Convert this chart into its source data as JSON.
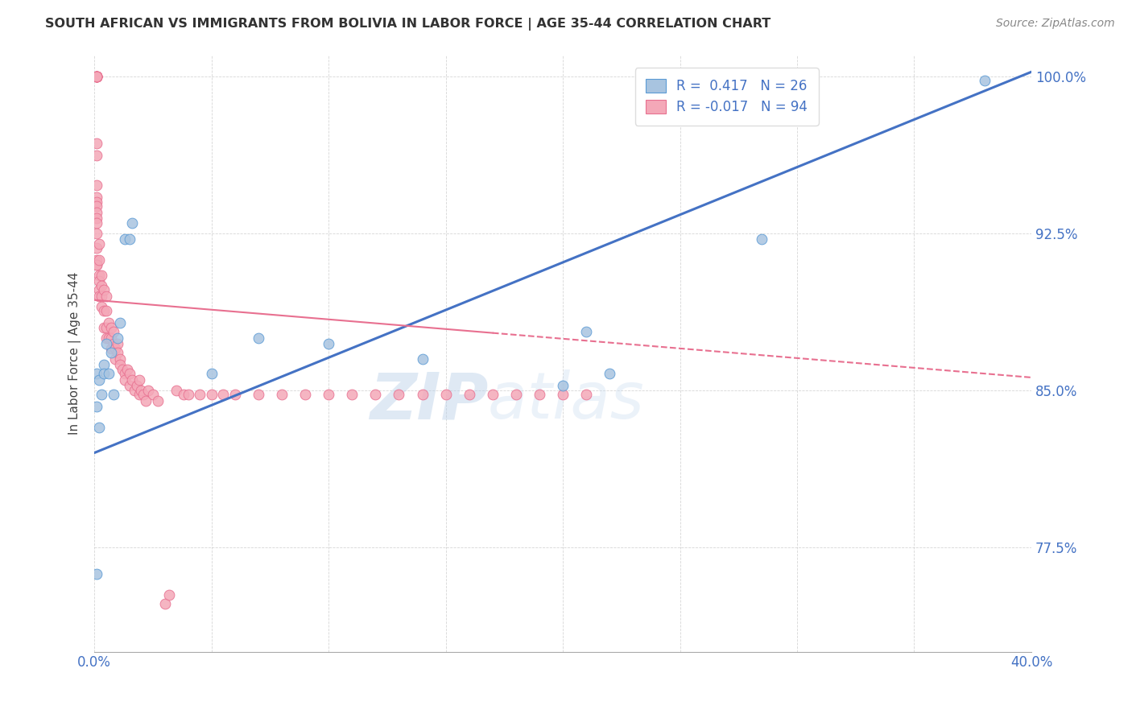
{
  "title": "SOUTH AFRICAN VS IMMIGRANTS FROM BOLIVIA IN LABOR FORCE | AGE 35-44 CORRELATION CHART",
  "source": "Source: ZipAtlas.com",
  "ylabel": "In Labor Force | Age 35-44",
  "xlim": [
    0.0,
    0.4
  ],
  "ylim": [
    0.725,
    1.01
  ],
  "xticks": [
    0.0,
    0.05,
    0.1,
    0.15,
    0.2,
    0.25,
    0.3,
    0.35,
    0.4
  ],
  "xticklabels": [
    "0.0%",
    "",
    "",
    "",
    "",
    "",
    "",
    "",
    "40.0%"
  ],
  "yticks": [
    0.775,
    0.85,
    0.925,
    1.0
  ],
  "yticklabels": [
    "77.5%",
    "85.0%",
    "92.5%",
    "100.0%"
  ],
  "blue_color": "#a8c4e0",
  "pink_color": "#f4a8b8",
  "blue_edge_color": "#5b9bd5",
  "pink_edge_color": "#e87090",
  "blue_line_color": "#4472c4",
  "pink_line_color": "#e87090",
  "watermark": "ZIPatlas",
  "blue_line_x0": 0.0,
  "blue_line_y0": 0.82,
  "blue_line_x1": 0.4,
  "blue_line_y1": 1.002,
  "pink_line_x0": 0.0,
  "pink_line_y0": 0.893,
  "pink_line_x1": 0.4,
  "pink_line_y1": 0.856,
  "sa_x": [
    0.001,
    0.001,
    0.001,
    0.002,
    0.002,
    0.003,
    0.004,
    0.004,
    0.005,
    0.006,
    0.007,
    0.008,
    0.01,
    0.011,
    0.013,
    0.015,
    0.016,
    0.05,
    0.07,
    0.1,
    0.14,
    0.2,
    0.21,
    0.22,
    0.285,
    0.38
  ],
  "sa_y": [
    0.762,
    0.842,
    0.858,
    0.832,
    0.855,
    0.848,
    0.862,
    0.858,
    0.872,
    0.858,
    0.868,
    0.848,
    0.875,
    0.882,
    0.922,
    0.922,
    0.93,
    0.858,
    0.875,
    0.872,
    0.865,
    0.852,
    0.878,
    0.858,
    0.922,
    0.998
  ],
  "bo_x": [
    0.001,
    0.001,
    0.001,
    0.001,
    0.001,
    0.001,
    0.001,
    0.001,
    0.001,
    0.001,
    0.001,
    0.001,
    0.001,
    0.001,
    0.001,
    0.001,
    0.001,
    0.001,
    0.001,
    0.001,
    0.001,
    0.001,
    0.001,
    0.002,
    0.002,
    0.002,
    0.002,
    0.002,
    0.002,
    0.003,
    0.003,
    0.003,
    0.003,
    0.004,
    0.004,
    0.004,
    0.005,
    0.005,
    0.005,
    0.005,
    0.006,
    0.006,
    0.007,
    0.007,
    0.007,
    0.008,
    0.008,
    0.009,
    0.009,
    0.01,
    0.01,
    0.011,
    0.011,
    0.012,
    0.013,
    0.013,
    0.014,
    0.015,
    0.015,
    0.016,
    0.017,
    0.018,
    0.019,
    0.019,
    0.02,
    0.021,
    0.022,
    0.023,
    0.025,
    0.027,
    0.03,
    0.032,
    0.035,
    0.038,
    0.04,
    0.045,
    0.05,
    0.055,
    0.06,
    0.07,
    0.08,
    0.09,
    0.1,
    0.11,
    0.12,
    0.13,
    0.14,
    0.15,
    0.16,
    0.17,
    0.18,
    0.19,
    0.2,
    0.21
  ],
  "bo_y": [
    1.0,
    1.0,
    1.0,
    1.0,
    1.0,
    1.0,
    1.0,
    1.0,
    1.0,
    0.968,
    0.962,
    0.948,
    0.942,
    0.94,
    0.938,
    0.935,
    0.932,
    0.93,
    0.925,
    0.918,
    0.912,
    0.91,
    0.91,
    0.92,
    0.912,
    0.905,
    0.902,
    0.898,
    0.895,
    0.905,
    0.9,
    0.895,
    0.89,
    0.898,
    0.888,
    0.88,
    0.895,
    0.888,
    0.88,
    0.875,
    0.882,
    0.875,
    0.88,
    0.875,
    0.87,
    0.878,
    0.872,
    0.87,
    0.865,
    0.872,
    0.868,
    0.865,
    0.862,
    0.86,
    0.858,
    0.855,
    0.86,
    0.858,
    0.852,
    0.855,
    0.85,
    0.852,
    0.848,
    0.855,
    0.85,
    0.848,
    0.845,
    0.85,
    0.848,
    0.845,
    0.748,
    0.752,
    0.85,
    0.848,
    0.848,
    0.848,
    0.848,
    0.848,
    0.848,
    0.848,
    0.848,
    0.848,
    0.848,
    0.848,
    0.848,
    0.848,
    0.848,
    0.848,
    0.848,
    0.848,
    0.848,
    0.848,
    0.848,
    0.848
  ]
}
